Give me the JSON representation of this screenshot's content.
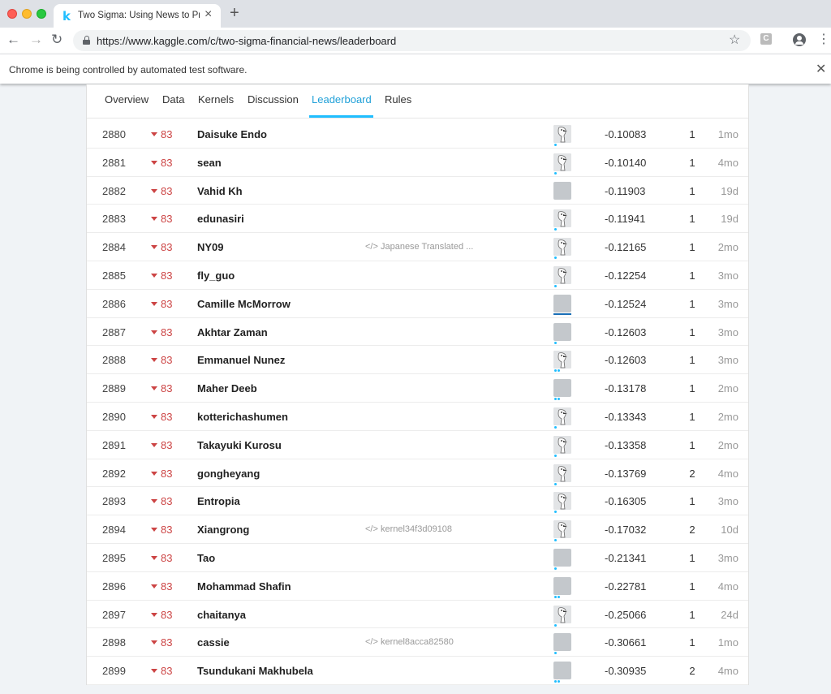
{
  "browser": {
    "tab_title": "Two Sigma: Using News to Pre",
    "tab_favicon": "k",
    "url": "https://www.kaggle.com/c/two-sigma-financial-news/leaderboard",
    "infobar_text": "Chrome is being controlled by automated test software.",
    "ext_label": "C"
  },
  "nav": {
    "tabs": [
      {
        "label": "Overview"
      },
      {
        "label": "Data"
      },
      {
        "label": "Kernels"
      },
      {
        "label": "Discussion"
      },
      {
        "label": "Leaderboard",
        "active": true
      },
      {
        "label": "Rules"
      }
    ]
  },
  "leaderboard": {
    "rows": [
      {
        "rank": "2880",
        "change": "83",
        "team": "Daisuke Endo",
        "kernel": "",
        "score": "-0.10083",
        "entries": "1",
        "last": "1mo",
        "avatar": "bird",
        "marker": "dots1"
      },
      {
        "rank": "2881",
        "change": "83",
        "team": "sean",
        "kernel": "",
        "score": "-0.10140",
        "entries": "1",
        "last": "4mo",
        "avatar": "bird",
        "marker": "dots1"
      },
      {
        "rank": "2882",
        "change": "83",
        "team": "Vahid Kh",
        "kernel": "",
        "score": "-0.11903",
        "entries": "1",
        "last": "19d",
        "avatar": "plain",
        "marker": "none"
      },
      {
        "rank": "2883",
        "change": "83",
        "team": "edunasiri",
        "kernel": "",
        "score": "-0.11941",
        "entries": "1",
        "last": "19d",
        "avatar": "bird",
        "marker": "dots1"
      },
      {
        "rank": "2884",
        "change": "83",
        "team": "NY09",
        "kernel": "Japanese Translated ...",
        "score": "-0.12165",
        "entries": "1",
        "last": "2mo",
        "avatar": "bird",
        "marker": "dots1"
      },
      {
        "rank": "2885",
        "change": "83",
        "team": "fly_guo",
        "kernel": "",
        "score": "-0.12254",
        "entries": "1",
        "last": "3mo",
        "avatar": "bird",
        "marker": "dots1"
      },
      {
        "rank": "2886",
        "change": "83",
        "team": "Camille McMorrow",
        "kernel": "",
        "score": "-0.12524",
        "entries": "1",
        "last": "3mo",
        "avatar": "plain",
        "marker": "bar"
      },
      {
        "rank": "2887",
        "change": "83",
        "team": "Akhtar Zaman",
        "kernel": "",
        "score": "-0.12603",
        "entries": "1",
        "last": "3mo",
        "avatar": "plain",
        "marker": "dots1"
      },
      {
        "rank": "2888",
        "change": "83",
        "team": "Emmanuel Nunez",
        "kernel": "",
        "score": "-0.12603",
        "entries": "1",
        "last": "3mo",
        "avatar": "bird",
        "marker": "dots2"
      },
      {
        "rank": "2889",
        "change": "83",
        "team": "Maher Deeb",
        "kernel": "",
        "score": "-0.13178",
        "entries": "1",
        "last": "2mo",
        "avatar": "plain",
        "marker": "dots2"
      },
      {
        "rank": "2890",
        "change": "83",
        "team": "kotterichashumen",
        "kernel": "",
        "score": "-0.13343",
        "entries": "1",
        "last": "2mo",
        "avatar": "bird",
        "marker": "dots1"
      },
      {
        "rank": "2891",
        "change": "83",
        "team": "Takayuki Kurosu",
        "kernel": "",
        "score": "-0.13358",
        "entries": "1",
        "last": "2mo",
        "avatar": "bird",
        "marker": "dots1"
      },
      {
        "rank": "2892",
        "change": "83",
        "team": "gongheyang",
        "kernel": "",
        "score": "-0.13769",
        "entries": "2",
        "last": "4mo",
        "avatar": "bird",
        "marker": "dots1"
      },
      {
        "rank": "2893",
        "change": "83",
        "team": "Entropia",
        "kernel": "",
        "score": "-0.16305",
        "entries": "1",
        "last": "3mo",
        "avatar": "bird",
        "marker": "dots1"
      },
      {
        "rank": "2894",
        "change": "83",
        "team": "Xiangrong",
        "kernel": "kernel34f3d09108",
        "score": "-0.17032",
        "entries": "2",
        "last": "10d",
        "avatar": "bird",
        "marker": "dots1"
      },
      {
        "rank": "2895",
        "change": "83",
        "team": "Tao",
        "kernel": "",
        "score": "-0.21341",
        "entries": "1",
        "last": "3mo",
        "avatar": "plain",
        "marker": "dots1"
      },
      {
        "rank": "2896",
        "change": "83",
        "team": "Mohammad Shafin",
        "kernel": "",
        "score": "-0.22781",
        "entries": "1",
        "last": "4mo",
        "avatar": "plain",
        "marker": "dots2"
      },
      {
        "rank": "2897",
        "change": "83",
        "team": "chaitanya",
        "kernel": "",
        "score": "-0.25066",
        "entries": "1",
        "last": "24d",
        "avatar": "bird",
        "marker": "dots1"
      },
      {
        "rank": "2898",
        "change": "83",
        "team": "cassie",
        "kernel": "kernel8acca82580",
        "score": "-0.30661",
        "entries": "1",
        "last": "1mo",
        "avatar": "plain",
        "marker": "dots1"
      },
      {
        "rank": "2899",
        "change": "83",
        "team": "Tsundukani Makhubela",
        "kernel": "",
        "score": "-0.30935",
        "entries": "2",
        "last": "4mo",
        "avatar": "plain",
        "marker": "dots2"
      }
    ]
  },
  "colors": {
    "accent": "#20beff",
    "rank_down": "#cc4444",
    "marker_bar": "#1a6fb6"
  }
}
